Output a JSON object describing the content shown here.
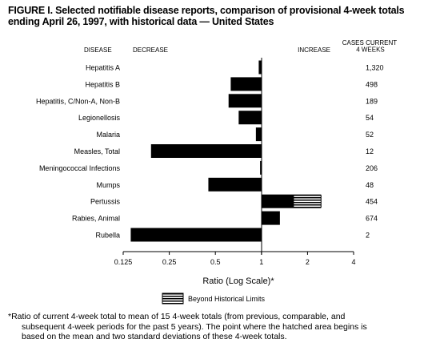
{
  "title": "FIGURE I. Selected notifiable disease reports, comparison of provisional 4-week totals ending April 26, 1997, with historical data — United States",
  "footnote": {
    "line1": "*Ratio of current 4-week total to mean of 15 4-week totals (from previous, comparable, and",
    "line2": "subsequent 4-week periods for the past 5 years). The point where the hatched area begins is",
    "line3": "based on the mean and two standard deviations of these 4-week totals."
  },
  "chart_data": {
    "type": "bar",
    "orientation": "horizontal",
    "x_scale": "log2",
    "xlim": [
      0.125,
      4
    ],
    "xticks": [
      "0.125",
      "0.25",
      "0.5",
      "1",
      "2",
      "4"
    ],
    "xlabel": "Ratio (Log Scale)*",
    "headers": {
      "disease": "DISEASE",
      "decrease": "DECREASE",
      "increase": "INCREASE",
      "cases": "CASES CURRENT 4 WEEKS"
    },
    "legend": {
      "label": "Beyond Historical Limits",
      "placement": "bottom-center"
    },
    "categories": [
      "Hepatitis A",
      "Hepatitis B",
      "Hepatitis, C/Non-A, Non-B",
      "Legionellosis",
      "Malaria",
      "Measles, Total",
      "Meningococcal Infections",
      "Mumps",
      "Pertussis",
      "Rabies, Animal",
      "Rubella"
    ],
    "values": [
      0.96,
      0.63,
      0.61,
      0.71,
      0.92,
      0.19,
      0.98,
      0.45,
      2.45,
      1.32,
      0.14
    ],
    "beyond_limits_start": [
      null,
      null,
      null,
      null,
      null,
      null,
      null,
      null,
      1.62,
      null,
      null
    ],
    "cases": [
      "1,320",
      "498",
      "189",
      "54",
      "52",
      "12",
      "206",
      "48",
      "454",
      "674",
      "2"
    ],
    "grid": false
  }
}
